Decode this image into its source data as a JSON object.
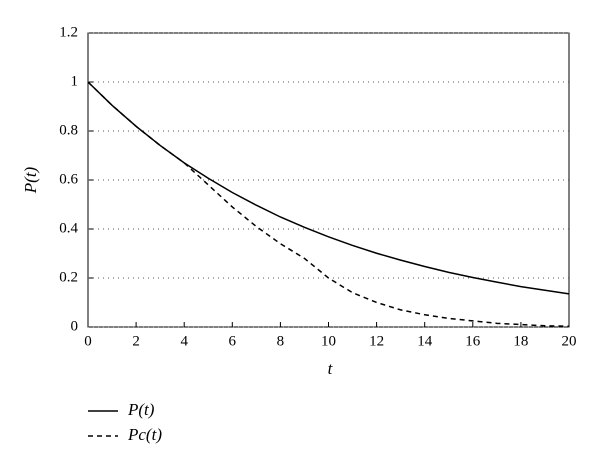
{
  "chart_data": {
    "type": "line",
    "xlabel": "t",
    "ylabel": "P(t)",
    "x": [
      0,
      1,
      2,
      3,
      4,
      5,
      6,
      7,
      8,
      9,
      10,
      11,
      12,
      13,
      14,
      15,
      16,
      17,
      18,
      19,
      20
    ],
    "series": [
      {
        "name": "P(t)",
        "color": "#000000",
        "style": "solid",
        "values": [
          1,
          0.905,
          0.819,
          0.741,
          0.67,
          0.607,
          0.549,
          0.497,
          0.449,
          0.407,
          0.368,
          0.333,
          0.301,
          0.273,
          0.247,
          0.223,
          0.202,
          0.183,
          0.165,
          0.15,
          0.135
        ]
      },
      {
        "name": "Pc(t)",
        "color": "#000000",
        "style": "dashed",
        "values": [
          1,
          0.905,
          0.819,
          0.741,
          0.67,
          0.58,
          0.49,
          0.41,
          0.34,
          0.28,
          0.2,
          0.14,
          0.1,
          0.07,
          0.05,
          0.035,
          0.025,
          0.015,
          0.01,
          0.005,
          0.003
        ]
      }
    ],
    "xlim": [
      0,
      20
    ],
    "xticks": [
      0,
      2,
      4,
      6,
      8,
      10,
      12,
      14,
      16,
      18,
      20
    ],
    "ylim": [
      0,
      1.2
    ],
    "yticks": [
      0,
      0.2,
      0.4,
      0.6,
      0.8,
      1,
      1.2
    ],
    "grid": true,
    "legend": "bottom-left"
  }
}
